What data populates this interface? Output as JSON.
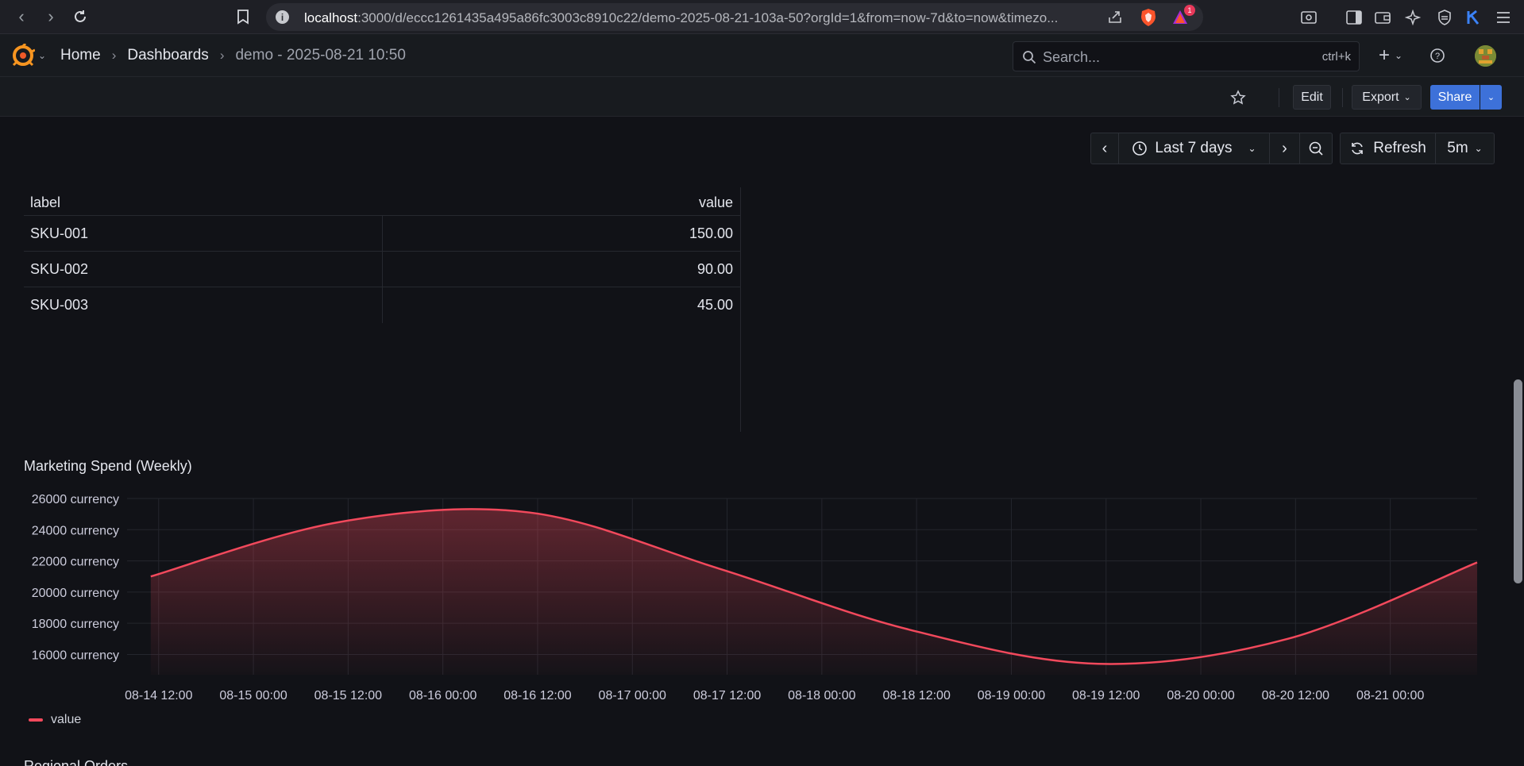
{
  "browser": {
    "url_host": "localhost",
    "url_rest": ":3000/d/eccc1261435a495a86fc3003c8910c22/demo-2025-08-21-103a-50?orgId=1&from=now-7d&to=now&timezo...",
    "notification_count": "1"
  },
  "topbar": {
    "breadcrumbs": [
      "Home",
      "Dashboards",
      "demo - 2025-08-21 10:50"
    ],
    "search_placeholder": "Search...",
    "search_shortcut": "ctrl+k"
  },
  "toolbar": {
    "edit_label": "Edit",
    "export_label": "Export",
    "share_label": "Share"
  },
  "time_controls": {
    "range_label": "Last 7 days",
    "refresh_label": "Refresh",
    "refresh_interval": "5m"
  },
  "table": {
    "columns": [
      "label",
      "value"
    ],
    "rows": [
      {
        "label": "SKU-001",
        "value": "150.00"
      },
      {
        "label": "SKU-002",
        "value": "90.00"
      },
      {
        "label": "SKU-003",
        "value": "45.00"
      }
    ]
  },
  "next_panel_title": "Regional Orders",
  "colors": {
    "series": "#f2495c",
    "accent": "#3d71d9"
  },
  "chart_data": {
    "type": "area",
    "title": "Marketing Spend (Weekly)",
    "unit": "currency",
    "yticks": [
      16000,
      18000,
      20000,
      22000,
      24000,
      26000
    ],
    "ylim": [
      14700,
      26000
    ],
    "xticks": [
      "08-14 12:00",
      "08-15 00:00",
      "08-15 12:00",
      "08-16 00:00",
      "08-16 12:00",
      "08-17 00:00",
      "08-17 12:00",
      "08-18 00:00",
      "08-18 12:00",
      "08-19 00:00",
      "08-19 12:00",
      "08-20 00:00",
      "08-20 12:00",
      "08-21 00:00"
    ],
    "grid": true,
    "legend_position": "bottom-left",
    "series": [
      {
        "name": "value",
        "x": [
          "08-14 11:00",
          "08-15 11:00",
          "08-16 11:00",
          "08-17 11:00",
          "08-18 11:00",
          "08-19 11:00",
          "08-20 11:00",
          "08-21 11:00"
        ],
        "values": [
          21000,
          24500,
          25100,
          21500,
          17600,
          15400,
          17000,
          21900
        ]
      }
    ]
  }
}
